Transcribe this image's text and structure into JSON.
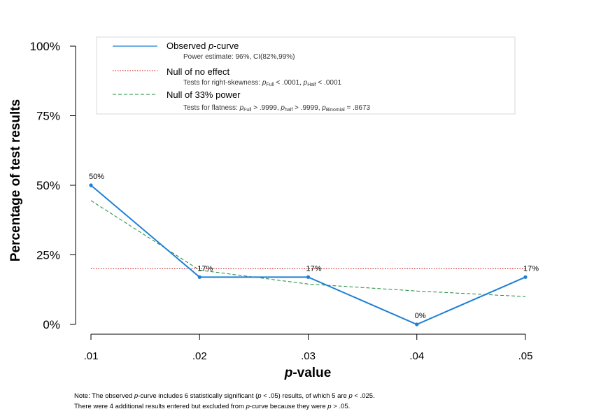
{
  "chart_data": {
    "type": "line",
    "xlabel": "-value",
    "xlabel_italic": "p",
    "ylabel": "Percentage of test results",
    "x": [
      0.01,
      0.02,
      0.03,
      0.04,
      0.05
    ],
    "x_tick_labels": [
      ".01",
      ".02",
      ".03",
      ".04",
      ".05"
    ],
    "y_tick_labels": [
      "0%",
      "25%",
      "50%",
      "75%",
      "100%"
    ],
    "y_ticks": [
      0,
      25,
      50,
      75,
      100
    ],
    "ylim": [
      0,
      100
    ],
    "series": [
      {
        "name": "Observed p-curve",
        "values": [
          50,
          17,
          17,
          0,
          17
        ],
        "data_labels": [
          "50%",
          "17%",
          "17%",
          "0%",
          "17%"
        ],
        "color": "#1f7fd6"
      },
      {
        "name": "Null of no effect",
        "values": [
          20,
          20,
          20,
          20,
          20
        ],
        "color": "#c00000"
      },
      {
        "name": "Null of 33% power",
        "values": [
          44.5,
          19.5,
          14.5,
          12,
          10
        ],
        "color": "#1a8a3a"
      }
    ],
    "legend": {
      "position": "top",
      "observed": {
        "pre": "Observed ",
        "italic": "p",
        "post": "-curve",
        "sub": "Power estimate: 96%, CI(82%,99%)"
      },
      "null_effect": {
        "label": "Null of no effect",
        "sub_pre": "Tests for right-skewness: ",
        "p": "p",
        "sub1": "Full",
        "val1": " < .0001,  ",
        "sub2": "Half",
        "val2": " < .0001"
      },
      "null_power": {
        "label": "Null of 33% power",
        "sub_pre": "Tests for flatness: ",
        "p": "p",
        "sub1": "Full",
        "val1": " > .9999,  ",
        "sub2": "half",
        "val2": " > .9999,  ",
        "sub3": "Binomial",
        "val3": " = .8673"
      }
    }
  },
  "notes": {
    "line1_a": "Note: The observed ",
    "line1_b": "p",
    "line1_c": "-curve includes 6 statistically significant (",
    "line1_d": "p",
    "line1_e": " < .05) results, of which 5 are ",
    "line1_f": "p",
    "line1_g": " < .025.",
    "line2_a": "There were 4 additional results entered but excluded from ",
    "line2_b": "p",
    "line2_c": "-curve because they were ",
    "line2_d": "p",
    "line2_e": " > .05."
  }
}
